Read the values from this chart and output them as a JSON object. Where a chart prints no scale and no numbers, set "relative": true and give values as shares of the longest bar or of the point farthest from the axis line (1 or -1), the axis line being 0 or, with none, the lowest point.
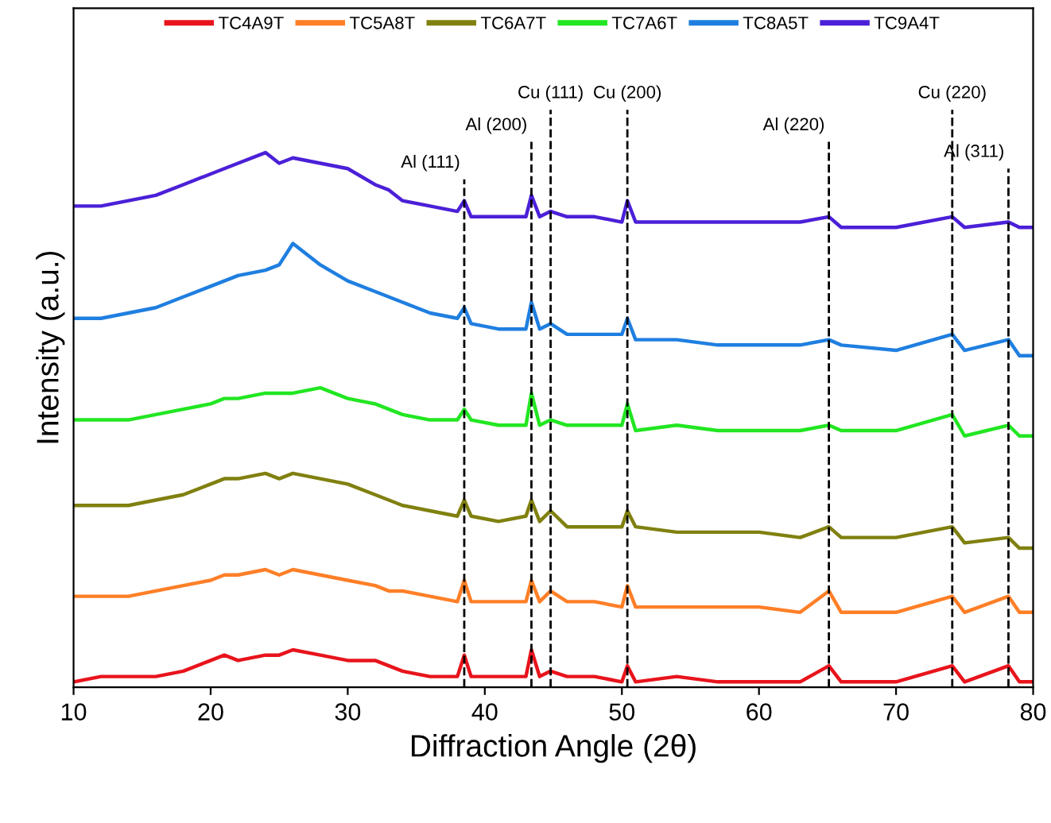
{
  "chart_data": {
    "type": "line",
    "relative": true,
    "xlabel": "Diffraction Angle (2θ)",
    "ylabel": "Intensity (a.u.)",
    "xlim": [
      10,
      80
    ],
    "xticks": [
      10,
      20,
      30,
      40,
      50,
      60,
      70,
      80
    ],
    "grid": false,
    "legend": "top",
    "line_style": "solid",
    "marker": "none",
    "tick_labels": "x",
    "x": [
      10,
      12,
      14,
      16,
      18,
      20,
      21,
      22,
      24,
      25,
      26,
      28,
      30,
      32,
      33,
      34,
      36,
      38,
      38.5,
      39,
      41,
      43,
      43.4,
      44,
      44.8,
      46,
      48,
      50,
      50.4,
      51,
      54,
      57,
      60,
      63,
      65.1,
      66,
      70,
      74.1,
      75,
      78.2,
      79,
      80
    ],
    "series": [
      {
        "name": "TC4A9T",
        "color": "#e8141c",
        "values": [
          0.01,
          0.02,
          0.02,
          0.02,
          0.03,
          0.05,
          0.06,
          0.05,
          0.06,
          0.06,
          0.07,
          0.06,
          0.05,
          0.05,
          0.04,
          0.03,
          0.02,
          0.02,
          0.06,
          0.02,
          0.02,
          0.02,
          0.07,
          0.02,
          0.03,
          0.02,
          0.02,
          0.01,
          0.04,
          0.01,
          0.02,
          0.01,
          0.01,
          0.01,
          0.04,
          0.01,
          0.01,
          0.04,
          0.01,
          0.04,
          0.01,
          0.01
        ]
      },
      {
        "name": "TC5A8T",
        "color": "#ff7f27",
        "values": [
          0.17,
          0.17,
          0.17,
          0.18,
          0.19,
          0.2,
          0.21,
          0.21,
          0.22,
          0.21,
          0.22,
          0.21,
          0.2,
          0.19,
          0.18,
          0.18,
          0.17,
          0.16,
          0.2,
          0.16,
          0.16,
          0.16,
          0.2,
          0.16,
          0.18,
          0.16,
          0.16,
          0.15,
          0.19,
          0.15,
          0.15,
          0.15,
          0.15,
          0.14,
          0.18,
          0.14,
          0.14,
          0.17,
          0.14,
          0.17,
          0.14,
          0.14
        ]
      },
      {
        "name": "TC6A7T",
        "color": "#808010",
        "values": [
          0.34,
          0.34,
          0.34,
          0.35,
          0.36,
          0.38,
          0.39,
          0.39,
          0.4,
          0.39,
          0.4,
          0.39,
          0.38,
          0.36,
          0.35,
          0.34,
          0.33,
          0.32,
          0.35,
          0.32,
          0.31,
          0.32,
          0.35,
          0.31,
          0.33,
          0.3,
          0.3,
          0.3,
          0.33,
          0.3,
          0.29,
          0.29,
          0.29,
          0.28,
          0.3,
          0.28,
          0.28,
          0.3,
          0.27,
          0.28,
          0.26,
          0.26
        ]
      },
      {
        "name": "TC7A6T",
        "color": "#22e622",
        "values": [
          0.5,
          0.5,
          0.5,
          0.51,
          0.52,
          0.53,
          0.54,
          0.54,
          0.55,
          0.55,
          0.55,
          0.56,
          0.54,
          0.53,
          0.52,
          0.51,
          0.5,
          0.5,
          0.52,
          0.5,
          0.49,
          0.49,
          0.55,
          0.49,
          0.5,
          0.49,
          0.49,
          0.49,
          0.53,
          0.48,
          0.49,
          0.48,
          0.48,
          0.48,
          0.49,
          0.48,
          0.48,
          0.51,
          0.47,
          0.49,
          0.47,
          0.47
        ]
      },
      {
        "name": "TC8A5T",
        "color": "#1f7fe0",
        "values": [
          0.69,
          0.69,
          0.7,
          0.71,
          0.73,
          0.75,
          0.76,
          0.77,
          0.78,
          0.79,
          0.83,
          0.79,
          0.76,
          0.74,
          0.73,
          0.72,
          0.7,
          0.69,
          0.71,
          0.68,
          0.67,
          0.67,
          0.72,
          0.67,
          0.68,
          0.66,
          0.66,
          0.66,
          0.69,
          0.65,
          0.65,
          0.64,
          0.64,
          0.64,
          0.65,
          0.64,
          0.63,
          0.66,
          0.63,
          0.65,
          0.62,
          0.62
        ]
      },
      {
        "name": "TC9A4T",
        "color": "#4b20d8",
        "values": [
          0.9,
          0.9,
          0.91,
          0.92,
          0.94,
          0.96,
          0.97,
          0.98,
          1.0,
          0.98,
          0.99,
          0.98,
          0.97,
          0.94,
          0.93,
          0.91,
          0.9,
          0.89,
          0.91,
          0.88,
          0.88,
          0.88,
          0.92,
          0.88,
          0.89,
          0.88,
          0.88,
          0.87,
          0.91,
          0.87,
          0.87,
          0.87,
          0.87,
          0.87,
          0.88,
          0.86,
          0.86,
          0.88,
          0.86,
          0.87,
          0.86,
          0.86
        ]
      }
    ],
    "ref_lines": [
      {
        "axis": "x",
        "value": 38.5,
        "label": "Al (111)",
        "color": "#000000",
        "line_style": "dashed"
      },
      {
        "axis": "x",
        "value": 43.4,
        "label": "Al (200)",
        "color": "#000000",
        "line_style": "dashed"
      },
      {
        "axis": "x",
        "value": 44.8,
        "label": "Cu (111)",
        "color": "#000000",
        "line_style": "dashed"
      },
      {
        "axis": "x",
        "value": 50.4,
        "label": "Cu (200)",
        "color": "#000000",
        "line_style": "dashed"
      },
      {
        "axis": "x",
        "value": 65.1,
        "label": "Al (220)",
        "color": "#000000",
        "line_style": "dashed"
      },
      {
        "axis": "x",
        "value": 74.1,
        "label": "Cu (220)",
        "color": "#000000",
        "line_style": "dashed"
      },
      {
        "axis": "x",
        "value": 78.2,
        "label": "Al (311)",
        "color": "#000000",
        "line_style": "dashed"
      }
    ]
  }
}
